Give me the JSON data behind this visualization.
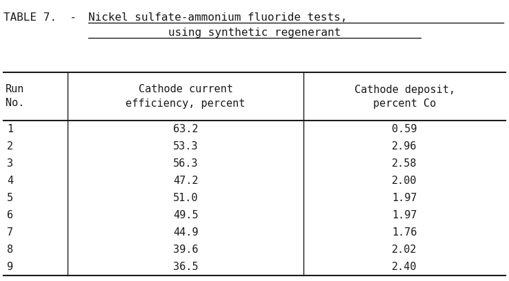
{
  "title_prefix": "TABLE 7.  - ",
  "title_underlined1": "Nickel sulfate-ammonium fluoride tests,",
  "title_line2": "using synthetic regenerant",
  "col1_header": [
    "Run",
    "No."
  ],
  "col2_header": [
    "Cathode current",
    "efficiency, percent"
  ],
  "col3_header": [
    "Cathode deposit,",
    "percent Co"
  ],
  "runs": [
    1,
    2,
    3,
    4,
    5,
    6,
    7,
    8,
    9
  ],
  "cathode_efficiency": [
    63.2,
    53.3,
    56.3,
    47.2,
    51.0,
    49.5,
    44.9,
    39.6,
    36.5
  ],
  "cathode_deposit": [
    0.59,
    2.96,
    2.58,
    2.0,
    1.97,
    1.97,
    1.76,
    2.02,
    2.4
  ],
  "bg_color": "#ffffff",
  "text_color": "#1a1a1a",
  "font_size": 11,
  "title_font_size": 11.5
}
